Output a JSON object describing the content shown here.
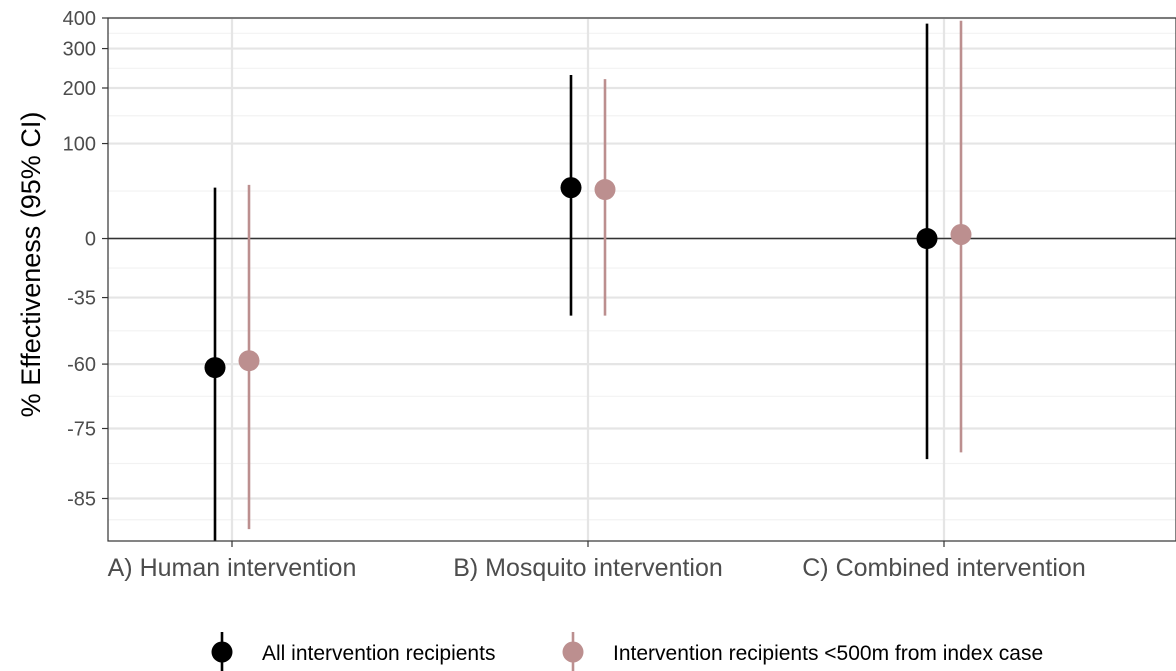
{
  "chart_data": {
    "type": "scatter",
    "subtype": "point-range (estimate with 95% CI)",
    "ylabel": "% Effectiveness (95% CI)",
    "y_scale": "log of risk ratio; tick labels are % effectiveness",
    "y_ticks": [
      400,
      300,
      200,
      100,
      0,
      -35,
      -60,
      -75,
      -85
    ],
    "y_tick_labels": [
      "400",
      "300",
      "200",
      "100",
      "0",
      "-35",
      "-60",
      "-75",
      "-85"
    ],
    "ylim": [
      -89,
      400
    ],
    "categories": [
      "A) Human intervention",
      "B) Mosquito intervention",
      "C) Combined intervention"
    ],
    "series": [
      {
        "name": "All intervention recipients",
        "color": "#000000",
        "estimates": [
          -61,
          45,
          0
        ],
        "lower": [
          -89,
          -43,
          -80
        ],
        "upper": [
          45,
          230,
          380
        ]
      },
      {
        "name": "Intervention recipients <500m from index case",
        "color": "#bc8f8f",
        "estimates": [
          -59,
          43,
          3
        ],
        "lower": [
          -88,
          -43,
          -79
        ],
        "upper": [
          48,
          220,
          390
        ]
      }
    ],
    "reference_line": 0,
    "grid": true,
    "legend_position": "bottom"
  }
}
